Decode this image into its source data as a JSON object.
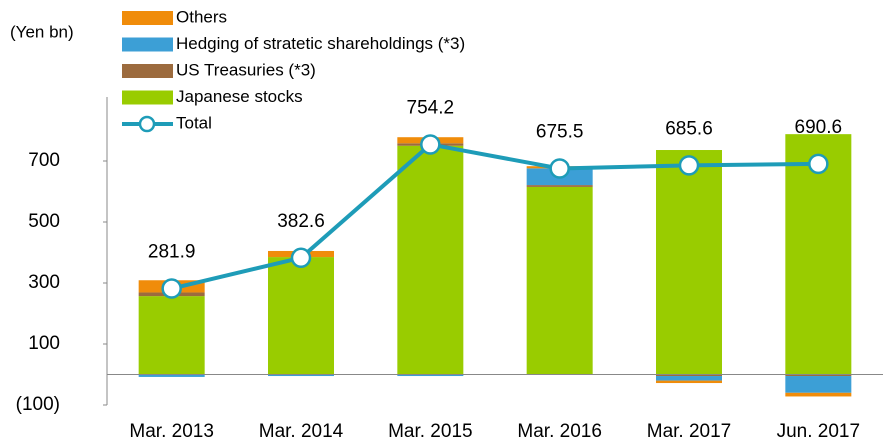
{
  "chart_data": {
    "type": "bar",
    "stacked": true,
    "y_label": "(Yen bn)",
    "categories": [
      "Mar. 2013",
      "Mar. 2014",
      "Mar. 2015",
      "Mar. 2016",
      "Mar. 2017",
      "Jun. 2017"
    ],
    "series": [
      {
        "name": "Others",
        "color": "#f08c0a",
        "values": [
          40,
          20,
          20,
          7,
          -8,
          -12
        ]
      },
      {
        "name": "Hedging of stratetic shareholdings (*3)",
        "color": "#3c9fd6",
        "values": [
          -8,
          -5,
          -5,
          55,
          -15,
          -55
        ]
      },
      {
        "name": "US Treasuries (*3)",
        "color": "#9c6b3e",
        "values": [
          12,
          0,
          8,
          6,
          -5,
          -5
        ]
      },
      {
        "name": "Japanese stocks",
        "color": "#99cc00",
        "values": [
          257,
          385,
          750,
          615,
          736,
          788
        ]
      },
      {
        "name": "Total",
        "type": "line",
        "color": "#1e9cb8",
        "values": [
          281.9,
          382.6,
          754.2,
          675.5,
          685.6,
          690.6
        ]
      }
    ],
    "ylim": [
      -100,
      900
    ],
    "yticks": [
      700,
      500,
      300,
      100,
      {
        "value": -100,
        "label": "(100)"
      }
    ]
  }
}
